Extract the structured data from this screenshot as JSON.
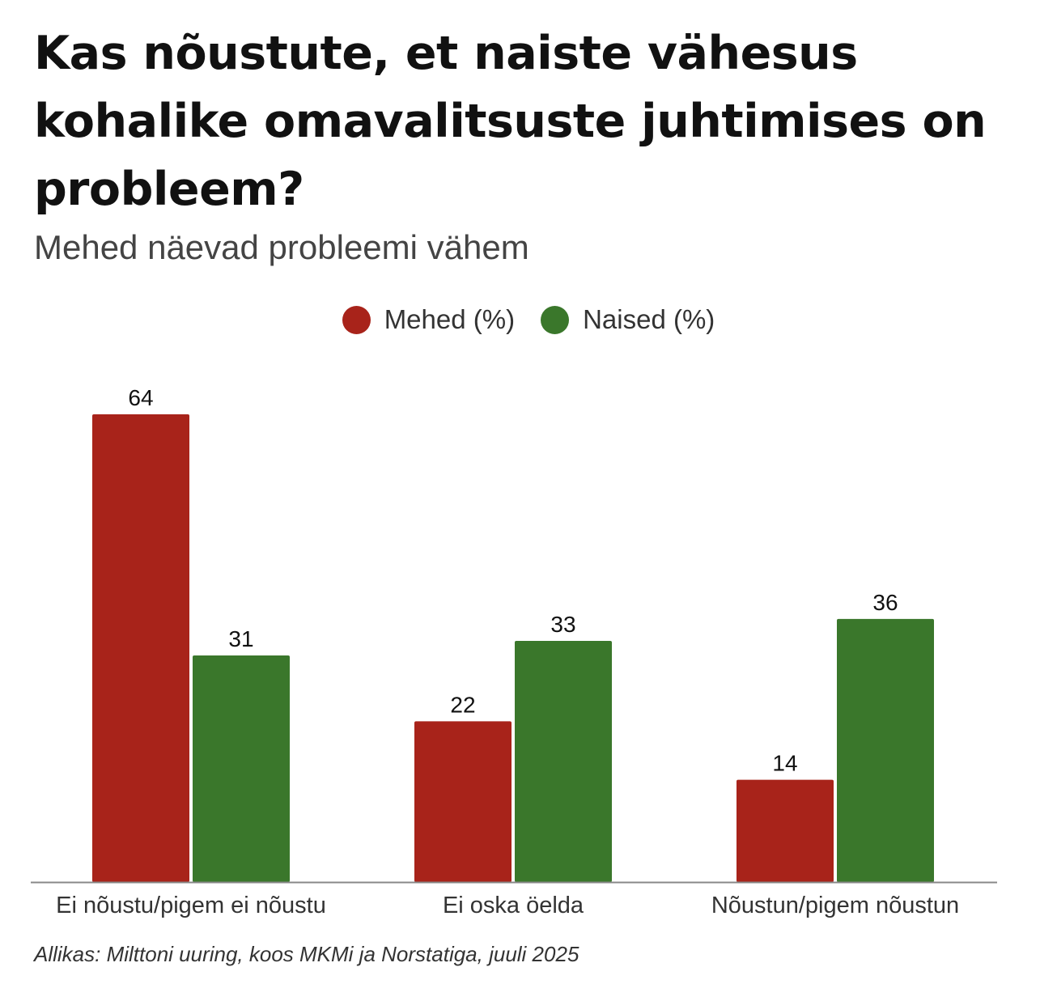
{
  "chart_data": {
    "type": "bar",
    "title": "Kas nõustute, et naiste vähesus kohalike omavalitsuste juhtimises on probleem?",
    "subtitle": "Mehed näevad probleemi vähem",
    "categories": [
      "Ei nõustu/pigem ei nõustu",
      "Ei oska öelda",
      "Nõustun/pigem nõustun"
    ],
    "series": [
      {
        "name": "Mehed (%)",
        "values": [
          64,
          22,
          14
        ],
        "color": "#a8231a"
      },
      {
        "name": "Naised (%)",
        "values": [
          31,
          33,
          36
        ],
        "color": "#3a772b"
      }
    ],
    "ylim": [
      0,
      64
    ],
    "grid": false,
    "legend": "top-center",
    "source": "Allikas: Milttoni uuring, koos MKMi ja Norstatiga, juuli 2025"
  }
}
